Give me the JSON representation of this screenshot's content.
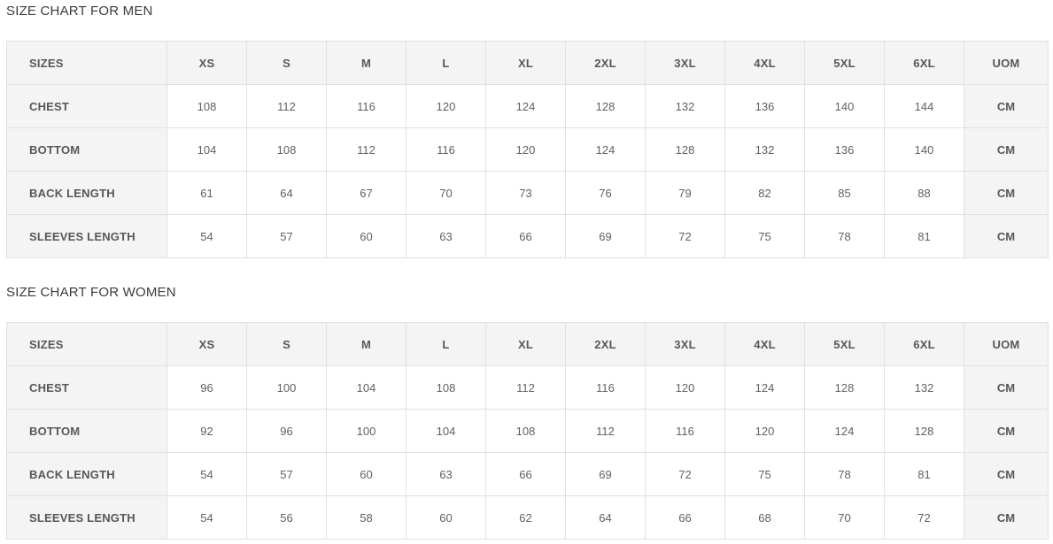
{
  "colors": {
    "page_background": "#ffffff",
    "header_background": "#f4f4f4",
    "border": "#e1e1e1",
    "title_text": "#383b40",
    "bold_text": "#54575c",
    "value_text": "#5d6166"
  },
  "tables": [
    {
      "title": "SIZE CHART FOR MEN",
      "columns": [
        "SIZES",
        "XS",
        "S",
        "M",
        "L",
        "XL",
        "2XL",
        "3XL",
        "4XL",
        "5XL",
        "6XL",
        "UOM"
      ],
      "rows": [
        {
          "label": "CHEST",
          "values": [
            108,
            112,
            116,
            120,
            124,
            128,
            132,
            136,
            140,
            144
          ],
          "uom": "CM"
        },
        {
          "label": "BOTTOM",
          "values": [
            104,
            108,
            112,
            116,
            120,
            124,
            128,
            132,
            136,
            140
          ],
          "uom": "CM"
        },
        {
          "label": "BACK LENGTH",
          "values": [
            61,
            64,
            67,
            70,
            73,
            76,
            79,
            82,
            85,
            88
          ],
          "uom": "CM"
        },
        {
          "label": "SLEEVES LENGTH",
          "values": [
            54,
            57,
            60,
            63,
            66,
            69,
            72,
            75,
            78,
            81
          ],
          "uom": "CM"
        }
      ]
    },
    {
      "title": "SIZE CHART FOR WOMEN",
      "columns": [
        "SIZES",
        "XS",
        "S",
        "M",
        "L",
        "XL",
        "2XL",
        "3XL",
        "4XL",
        "5XL",
        "6XL",
        "UOM"
      ],
      "rows": [
        {
          "label": "CHEST",
          "values": [
            96,
            100,
            104,
            108,
            112,
            116,
            120,
            124,
            128,
            132
          ],
          "uom": "CM"
        },
        {
          "label": "BOTTOM",
          "values": [
            92,
            96,
            100,
            104,
            108,
            112,
            116,
            120,
            124,
            128
          ],
          "uom": "CM"
        },
        {
          "label": "BACK LENGTH",
          "values": [
            54,
            57,
            60,
            63,
            66,
            69,
            72,
            75,
            78,
            81
          ],
          "uom": "CM"
        },
        {
          "label": "SLEEVES LENGTH",
          "values": [
            54,
            56,
            58,
            60,
            62,
            64,
            66,
            68,
            70,
            72
          ],
          "uom": "CM"
        }
      ]
    }
  ]
}
